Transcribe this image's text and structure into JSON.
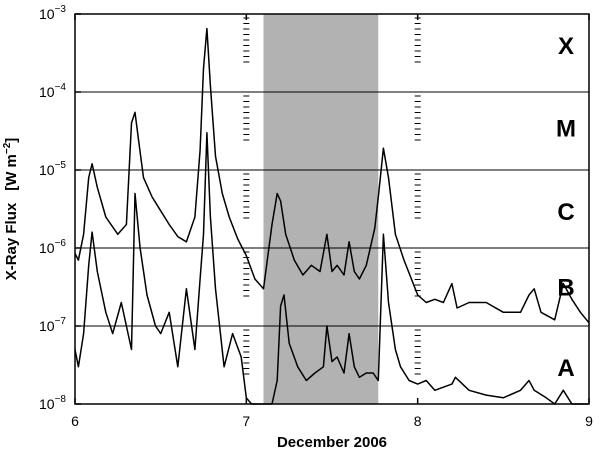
{
  "chart_data": {
    "type": "line",
    "xlabel": "December 2006",
    "ylabel": "X-Ray Flux",
    "ylabel_units": "[W m",
    "ylabel_units_exp": "−2",
    "ylabel_units_close": "]",
    "yscale": "log",
    "xlim": [
      6,
      9
    ],
    "ylim": [
      1e-08,
      0.001
    ],
    "grid": "horizontal lines at each decade",
    "x_ticks": [
      {
        "value": 6,
        "label": "6"
      },
      {
        "value": 7,
        "label": "7"
      },
      {
        "value": 8,
        "label": "8"
      },
      {
        "value": 9,
        "label": "9"
      }
    ],
    "y_ticks": [
      {
        "value": 1e-08,
        "base": "10",
        "exp": "−8"
      },
      {
        "value": 1e-07,
        "base": "10",
        "exp": "−7"
      },
      {
        "value": 1e-06,
        "base": "10",
        "exp": "−6"
      },
      {
        "value": 1e-05,
        "base": "10",
        "exp": "−5"
      },
      {
        "value": 0.0001,
        "base": "10",
        "exp": "−4"
      },
      {
        "value": 0.001,
        "base": "10",
        "exp": "−3"
      }
    ],
    "flare_classes": [
      {
        "label": "X",
        "y": 0.0004
      },
      {
        "label": "M",
        "y": 3.5e-05
      },
      {
        "label": "C",
        "y": 3e-06
      },
      {
        "label": "B",
        "y": 3.2e-07
      },
      {
        "label": "A",
        "y": 3e-08
      }
    ],
    "shaded_region": {
      "x_start": 7.1,
      "x_end": 7.77,
      "color": "#b2b2b2"
    },
    "dashed_markers": [
      7.0,
      8.0
    ],
    "series": [
      {
        "color": "#000000",
        "x": [
          6.0,
          6.02,
          6.05,
          6.08,
          6.1,
          6.13,
          6.18,
          6.25,
          6.3,
          6.33,
          6.35,
          6.37,
          6.4,
          6.45,
          6.5,
          6.55,
          6.6,
          6.65,
          6.7,
          6.73,
          6.75,
          6.77,
          6.79,
          6.82,
          6.86,
          6.9,
          6.95,
          7.0,
          7.05,
          7.1,
          7.15,
          7.18,
          7.2,
          7.23,
          7.28,
          7.33,
          7.38,
          7.43,
          7.47,
          7.5,
          7.53,
          7.57,
          7.6,
          7.63,
          7.66,
          7.7,
          7.75,
          7.77,
          7.8,
          7.83,
          7.87,
          7.92,
          8.0,
          8.05,
          8.1,
          8.15,
          8.2,
          8.23,
          8.3,
          8.4,
          8.5,
          8.6,
          8.65,
          8.68,
          8.72,
          8.8,
          8.85,
          8.9,
          8.95,
          9.0
        ],
        "y": [
          8.5e-07,
          7e-07,
          1.5e-06,
          8e-06,
          1.2e-05,
          6e-06,
          2.5e-06,
          1.5e-06,
          2e-06,
          4e-05,
          5.5e-05,
          2.5e-05,
          8e-06,
          4.5e-06,
          3e-06,
          2e-06,
          1.4e-06,
          1.2e-06,
          2.5e-06,
          1.8e-05,
          0.0002,
          0.00065,
          0.00012,
          1.5e-05,
          5e-06,
          2.5e-06,
          1.3e-06,
          8e-07,
          4e-07,
          3e-07,
          2e-06,
          5e-06,
          4e-06,
          1.5e-06,
          7e-07,
          4.5e-07,
          6e-07,
          5e-07,
          1.5e-06,
          5e-07,
          6e-07,
          4.5e-07,
          1.2e-06,
          5e-07,
          4e-07,
          6e-07,
          1.8e-06,
          4.5e-06,
          1.9e-05,
          8e-06,
          1.5e-06,
          7e-07,
          2.5e-07,
          2e-07,
          2.2e-07,
          2e-07,
          3.5e-07,
          1.7e-07,
          2e-07,
          2e-07,
          1.5e-07,
          1.5e-07,
          2.5e-07,
          3e-07,
          1.5e-07,
          1.2e-07,
          3.5e-07,
          2.2e-07,
          1.5e-07,
          1.1e-07
        ]
      },
      {
        "color": "#000000",
        "x": [
          6.0,
          6.02,
          6.05,
          6.08,
          6.1,
          6.13,
          6.18,
          6.22,
          6.27,
          6.3,
          6.33,
          6.35,
          6.38,
          6.42,
          6.47,
          6.5,
          6.55,
          6.6,
          6.65,
          6.7,
          6.73,
          6.75,
          6.77,
          6.79,
          6.82,
          6.87,
          6.92,
          6.97,
          7.0,
          7.03,
          7.08,
          7.12,
          7.15,
          7.18,
          7.2,
          7.22,
          7.25,
          7.3,
          7.35,
          7.4,
          7.45,
          7.47,
          7.5,
          7.53,
          7.57,
          7.6,
          7.63,
          7.66,
          7.7,
          7.74,
          7.77,
          7.8,
          7.83,
          7.87,
          7.9,
          7.95,
          8.0,
          8.05,
          8.1,
          8.2,
          8.22,
          8.3,
          8.4,
          8.5,
          8.6,
          8.65,
          8.68,
          8.75,
          8.8,
          8.85,
          8.9,
          9.0
        ],
        "y": [
          5e-08,
          3e-08,
          8e-08,
          6e-07,
          1.6e-06,
          5e-07,
          1.5e-07,
          8e-08,
          2e-07,
          1e-07,
          5e-08,
          5e-06,
          1e-06,
          2.5e-07,
          1e-07,
          8e-08,
          1.5e-07,
          3e-08,
          3e-07,
          5e-08,
          4e-07,
          1.5e-06,
          3e-05,
          2.5e-06,
          3e-07,
          3e-08,
          8e-08,
          4e-08,
          1.2e-08,
          1e-08,
          1e-08,
          1e-08,
          1e-08,
          2e-08,
          1.8e-07,
          2.5e-07,
          6e-08,
          3e-08,
          2e-08,
          2.5e-08,
          3e-08,
          1e-07,
          3.5e-08,
          4e-08,
          2.5e-08,
          8e-08,
          3e-08,
          2.2e-08,
          2.5e-08,
          2.5e-08,
          2e-08,
          1.5e-06,
          2e-07,
          5e-08,
          3e-08,
          2e-08,
          1.8e-08,
          2e-08,
          1.5e-08,
          1.8e-08,
          2.2e-08,
          1.5e-08,
          1.3e-08,
          1.2e-08,
          1.5e-08,
          2e-08,
          1.5e-08,
          1.2e-08,
          1e-08,
          1.5e-08,
          1e-08,
          1e-08
        ]
      }
    ]
  }
}
